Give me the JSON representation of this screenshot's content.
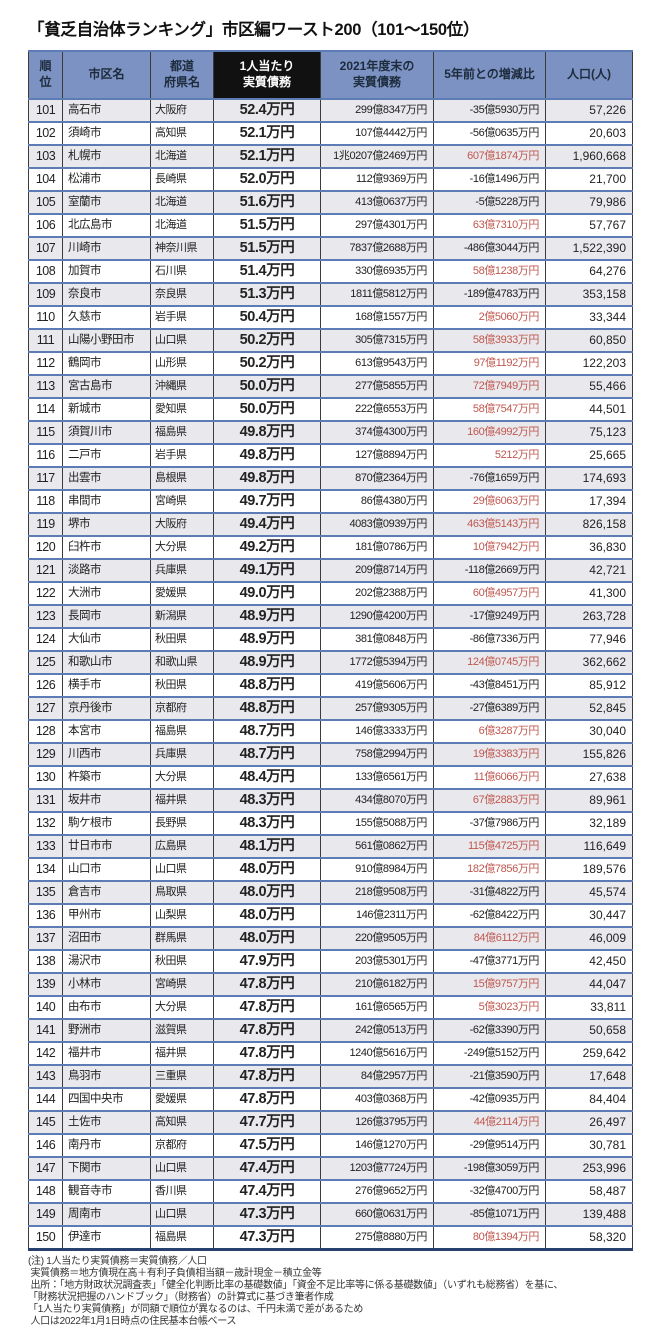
{
  "title": "「貧乏自治体ランキング」市区編ワースト200（101～150位）",
  "colors": {
    "header_bg": "#7b92c3",
    "header_text": "#1e2b3c",
    "black_col_bg": "#111111",
    "stripe": "#e9e9ed",
    "row_line": "#5d7cb5",
    "col_line": "#3b3b3b",
    "red": "#c0574f",
    "bottom_line": "#27406e"
  },
  "table": {
    "headers": [
      {
        "label": "順\n位"
      },
      {
        "label": "市区名"
      },
      {
        "label": "都道\n府県名"
      },
      {
        "label": "1人当たり\n実質債務"
      },
      {
        "label": "2021年度末の\n実質債務"
      },
      {
        "label": "5年前との増減比"
      },
      {
        "label": "人口(人)"
      }
    ],
    "rows": [
      {
        "rank": "101",
        "city": "高石市",
        "pref": "大阪府",
        "per_capita": "52.4万円",
        "debt": "299億8347万円",
        "change": "-35億5930万円",
        "change_red": false,
        "pop": "57,226"
      },
      {
        "rank": "102",
        "city": "須崎市",
        "pref": "高知県",
        "per_capita": "52.1万円",
        "debt": "107億4442万円",
        "change": "-56億0635万円",
        "change_red": false,
        "pop": "20,603"
      },
      {
        "rank": "103",
        "city": "札幌市",
        "pref": "北海道",
        "per_capita": "52.1万円",
        "debt": "1兆0207億2469万円",
        "change": "607億1874万円",
        "change_red": true,
        "pop": "1,960,668"
      },
      {
        "rank": "104",
        "city": "松浦市",
        "pref": "長崎県",
        "per_capita": "52.0万円",
        "debt": "112億9369万円",
        "change": "-16億1496万円",
        "change_red": false,
        "pop": "21,700"
      },
      {
        "rank": "105",
        "city": "室蘭市",
        "pref": "北海道",
        "per_capita": "51.6万円",
        "debt": "413億0637万円",
        "change": "-5億5228万円",
        "change_red": false,
        "pop": "79,986"
      },
      {
        "rank": "106",
        "city": "北広島市",
        "pref": "北海道",
        "per_capita": "51.5万円",
        "debt": "297億4301万円",
        "change": "63億7310万円",
        "change_red": true,
        "pop": "57,767"
      },
      {
        "rank": "107",
        "city": "川崎市",
        "pref": "神奈川県",
        "per_capita": "51.5万円",
        "debt": "7837億2688万円",
        "change": "-486億3044万円",
        "change_red": false,
        "pop": "1,522,390"
      },
      {
        "rank": "108",
        "city": "加賀市",
        "pref": "石川県",
        "per_capita": "51.4万円",
        "debt": "330億6935万円",
        "change": "58億1238万円",
        "change_red": true,
        "pop": "64,276"
      },
      {
        "rank": "109",
        "city": "奈良市",
        "pref": "奈良県",
        "per_capita": "51.3万円",
        "debt": "1811億5812万円",
        "change": "-189億4783万円",
        "change_red": false,
        "pop": "353,158"
      },
      {
        "rank": "110",
        "city": "久慈市",
        "pref": "岩手県",
        "per_capita": "50.4万円",
        "debt": "168億1557万円",
        "change": "2億5060万円",
        "change_red": true,
        "pop": "33,344"
      },
      {
        "rank": "111",
        "city": "山陽小野田市",
        "pref": "山口県",
        "per_capita": "50.2万円",
        "debt": "305億7315万円",
        "change": "58億3933万円",
        "change_red": true,
        "pop": "60,850"
      },
      {
        "rank": "112",
        "city": "鶴岡市",
        "pref": "山形県",
        "per_capita": "50.2万円",
        "debt": "613億9543万円",
        "change": "97億1192万円",
        "change_red": true,
        "pop": "122,203"
      },
      {
        "rank": "113",
        "city": "宮古島市",
        "pref": "沖縄県",
        "per_capita": "50.0万円",
        "debt": "277億5855万円",
        "change": "72億7949万円",
        "change_red": true,
        "pop": "55,466"
      },
      {
        "rank": "114",
        "city": "新城市",
        "pref": "愛知県",
        "per_capita": "50.0万円",
        "debt": "222億6553万円",
        "change": "58億7547万円",
        "change_red": true,
        "pop": "44,501"
      },
      {
        "rank": "115",
        "city": "須賀川市",
        "pref": "福島県",
        "per_capita": "49.8万円",
        "debt": "374億4300万円",
        "change": "160億4992万円",
        "change_red": true,
        "pop": "75,123"
      },
      {
        "rank": "116",
        "city": "二戸市",
        "pref": "岩手県",
        "per_capita": "49.8万円",
        "debt": "127億8894万円",
        "change": "5212万円",
        "change_red": true,
        "pop": "25,665"
      },
      {
        "rank": "117",
        "city": "出雲市",
        "pref": "島根県",
        "per_capita": "49.8万円",
        "debt": "870億2364万円",
        "change": "-76億1659万円",
        "change_red": false,
        "pop": "174,693"
      },
      {
        "rank": "118",
        "city": "串間市",
        "pref": "宮崎県",
        "per_capita": "49.7万円",
        "debt": "86億4380万円",
        "change": "29億6063万円",
        "change_red": true,
        "pop": "17,394"
      },
      {
        "rank": "119",
        "city": "堺市",
        "pref": "大阪府",
        "per_capita": "49.4万円",
        "debt": "4083億0939万円",
        "change": "463億5143万円",
        "change_red": true,
        "pop": "826,158"
      },
      {
        "rank": "120",
        "city": "臼杵市",
        "pref": "大分県",
        "per_capita": "49.2万円",
        "debt": "181億0786万円",
        "change": "10億7942万円",
        "change_red": true,
        "pop": "36,830"
      },
      {
        "rank": "121",
        "city": "淡路市",
        "pref": "兵庫県",
        "per_capita": "49.1万円",
        "debt": "209億8714万円",
        "change": "-118億2669万円",
        "change_red": false,
        "pop": "42,721"
      },
      {
        "rank": "122",
        "city": "大洲市",
        "pref": "愛媛県",
        "per_capita": "49.0万円",
        "debt": "202億2388万円",
        "change": "60億4957万円",
        "change_red": true,
        "pop": "41,300"
      },
      {
        "rank": "123",
        "city": "長岡市",
        "pref": "新潟県",
        "per_capita": "48.9万円",
        "debt": "1290億4200万円",
        "change": "-17億9249万円",
        "change_red": false,
        "pop": "263,728"
      },
      {
        "rank": "124",
        "city": "大仙市",
        "pref": "秋田県",
        "per_capita": "48.9万円",
        "debt": "381億0848万円",
        "change": "-86億7336万円",
        "change_red": false,
        "pop": "77,946"
      },
      {
        "rank": "125",
        "city": "和歌山市",
        "pref": "和歌山県",
        "per_capita": "48.9万円",
        "debt": "1772億5394万円",
        "change": "124億0745万円",
        "change_red": true,
        "pop": "362,662"
      },
      {
        "rank": "126",
        "city": "横手市",
        "pref": "秋田県",
        "per_capita": "48.8万円",
        "debt": "419億5606万円",
        "change": "-43億8451万円",
        "change_red": false,
        "pop": "85,912"
      },
      {
        "rank": "127",
        "city": "京丹後市",
        "pref": "京都府",
        "per_capita": "48.8万円",
        "debt": "257億9305万円",
        "change": "-27億6389万円",
        "change_red": false,
        "pop": "52,845"
      },
      {
        "rank": "128",
        "city": "本宮市",
        "pref": "福島県",
        "per_capita": "48.7万円",
        "debt": "146億3333万円",
        "change": "6億3287万円",
        "change_red": true,
        "pop": "30,040"
      },
      {
        "rank": "129",
        "city": "川西市",
        "pref": "兵庫県",
        "per_capita": "48.7万円",
        "debt": "758億2994万円",
        "change": "19億3383万円",
        "change_red": true,
        "pop": "155,826"
      },
      {
        "rank": "130",
        "city": "杵築市",
        "pref": "大分県",
        "per_capita": "48.4万円",
        "debt": "133億6561万円",
        "change": "11億6066万円",
        "change_red": true,
        "pop": "27,638"
      },
      {
        "rank": "131",
        "city": "坂井市",
        "pref": "福井県",
        "per_capita": "48.3万円",
        "debt": "434億8070万円",
        "change": "67億2883万円",
        "change_red": true,
        "pop": "89,961"
      },
      {
        "rank": "132",
        "city": "駒ケ根市",
        "pref": "長野県",
        "per_capita": "48.3万円",
        "debt": "155億5088万円",
        "change": "-37億7986万円",
        "change_red": false,
        "pop": "32,189"
      },
      {
        "rank": "133",
        "city": "廿日市市",
        "pref": "広島県",
        "per_capita": "48.1万円",
        "debt": "561億0862万円",
        "change": "115億4725万円",
        "change_red": true,
        "pop": "116,649"
      },
      {
        "rank": "134",
        "city": "山口市",
        "pref": "山口県",
        "per_capita": "48.0万円",
        "debt": "910億8984万円",
        "change": "182億7856万円",
        "change_red": true,
        "pop": "189,576"
      },
      {
        "rank": "135",
        "city": "倉吉市",
        "pref": "鳥取県",
        "per_capita": "48.0万円",
        "debt": "218億9508万円",
        "change": "-31億4822万円",
        "change_red": false,
        "pop": "45,574"
      },
      {
        "rank": "136",
        "city": "甲州市",
        "pref": "山梨県",
        "per_capita": "48.0万円",
        "debt": "146億2311万円",
        "change": "-62億8422万円",
        "change_red": false,
        "pop": "30,447"
      },
      {
        "rank": "137",
        "city": "沼田市",
        "pref": "群馬県",
        "per_capita": "48.0万円",
        "debt": "220億9505万円",
        "change": "84億6112万円",
        "change_red": true,
        "pop": "46,009"
      },
      {
        "rank": "138",
        "city": "湯沢市",
        "pref": "秋田県",
        "per_capita": "47.9万円",
        "debt": "203億5301万円",
        "change": "-47億3771万円",
        "change_red": false,
        "pop": "42,450"
      },
      {
        "rank": "139",
        "city": "小林市",
        "pref": "宮崎県",
        "per_capita": "47.8万円",
        "debt": "210億6182万円",
        "change": "15億9757万円",
        "change_red": true,
        "pop": "44,047"
      },
      {
        "rank": "140",
        "city": "由布市",
        "pref": "大分県",
        "per_capita": "47.8万円",
        "debt": "161億6565万円",
        "change": "5億3023万円",
        "change_red": true,
        "pop": "33,811"
      },
      {
        "rank": "141",
        "city": "野洲市",
        "pref": "滋賀県",
        "per_capita": "47.8万円",
        "debt": "242億0513万円",
        "change": "-62億3390万円",
        "change_red": false,
        "pop": "50,658"
      },
      {
        "rank": "142",
        "city": "福井市",
        "pref": "福井県",
        "per_capita": "47.8万円",
        "debt": "1240億5616万円",
        "change": "-249億5152万円",
        "change_red": false,
        "pop": "259,642"
      },
      {
        "rank": "143",
        "city": "鳥羽市",
        "pref": "三重県",
        "per_capita": "47.8万円",
        "debt": "84億2957万円",
        "change": "-21億3590万円",
        "change_red": false,
        "pop": "17,648"
      },
      {
        "rank": "144",
        "city": "四国中央市",
        "pref": "愛媛県",
        "per_capita": "47.8万円",
        "debt": "403億0368万円",
        "change": "-42億0935万円",
        "change_red": false,
        "pop": "84,404"
      },
      {
        "rank": "145",
        "city": "土佐市",
        "pref": "高知県",
        "per_capita": "47.7万円",
        "debt": "126億3795万円",
        "change": "44億2114万円",
        "change_red": true,
        "pop": "26,497"
      },
      {
        "rank": "146",
        "city": "南丹市",
        "pref": "京都府",
        "per_capita": "47.5万円",
        "debt": "146億1270万円",
        "change": "-29億9514万円",
        "change_red": false,
        "pop": "30,781"
      },
      {
        "rank": "147",
        "city": "下関市",
        "pref": "山口県",
        "per_capita": "47.4万円",
        "debt": "1203億7724万円",
        "change": "-198億3059万円",
        "change_red": false,
        "pop": "253,996"
      },
      {
        "rank": "148",
        "city": "観音寺市",
        "pref": "香川県",
        "per_capita": "47.4万円",
        "debt": "276億9652万円",
        "change": "-32億4700万円",
        "change_red": false,
        "pop": "58,487"
      },
      {
        "rank": "149",
        "city": "周南市",
        "pref": "山口県",
        "per_capita": "47.3万円",
        "debt": "660億0631万円",
        "change": "-85億1071万円",
        "change_red": false,
        "pop": "139,488"
      },
      {
        "rank": "150",
        "city": "伊達市",
        "pref": "福島県",
        "per_capita": "47.3万円",
        "debt": "275億8880万円",
        "change": "80億1394万円",
        "change_red": true,
        "pop": "58,320"
      }
    ]
  },
  "notes": [
    "(注) 1人当たり実質債務＝実質債務／人口",
    " 実質債務＝地方債現在高＋有利子負債相当額－歳計現金－積立金等",
    " 出所：「地方財政状況調査表」「健全化判断比率の基礎数値」「資金不足比率等に係る基礎数値」（いずれも総務省）を基に、",
    "「財務状況把握のハンドブック」（財務省）の計算式に基づき筆者作成",
    "「1人当たり実質債務」が同額で順位が異なるのは、千円未満で差があるため",
    " 人口は2022年1月1日時点の住民基本台帳ベース"
  ]
}
